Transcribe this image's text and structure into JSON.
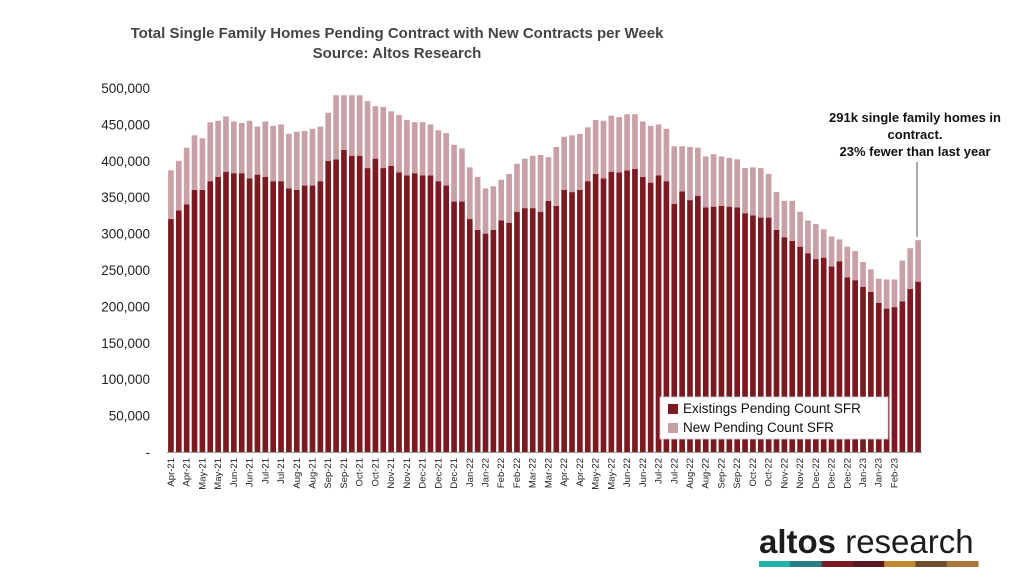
{
  "chart_data": {
    "type": "bar",
    "stacked": true,
    "title": "Total Single Family Homes Pending Contract with New Contracts per Week",
    "subtitle": "Source: Altos Research",
    "ylim": [
      0,
      500000
    ],
    "yticks": [
      {
        "value": 0,
        "label": "-"
      },
      {
        "value": 50000,
        "label": "50,000"
      },
      {
        "value": 100000,
        "label": "100,000"
      },
      {
        "value": 150000,
        "label": "150,000"
      },
      {
        "value": 200000,
        "label": "200,000"
      },
      {
        "value": 250000,
        "label": "250,000"
      },
      {
        "value": 300000,
        "label": "300,000"
      },
      {
        "value": 350000,
        "label": "350,000"
      },
      {
        "value": 400000,
        "label": "400,000"
      },
      {
        "value": 450000,
        "label": "450,000"
      },
      {
        "value": 500000,
        "label": "500,000"
      }
    ],
    "x_tick_every": 2,
    "x_labels": [
      "Apr-21",
      "Apr-21",
      "May-21",
      "May-21",
      "Jun-21",
      "Jun-21",
      "Jul-21",
      "Jul-21",
      "Aug-21",
      "Aug-21",
      "Sep-21",
      "Sep-21",
      "Oct-21",
      "Oct-21",
      "Nov-21",
      "Nov-21",
      "Dec-21",
      "Dec-21",
      "Dec-21",
      "Jan-22",
      "Jan-22",
      "Feb-22",
      "Feb-22",
      "Mar-22",
      "Mar-22",
      "Apr-22",
      "Apr-22",
      "May-22",
      "May-22",
      "Jun-22",
      "Jun-22",
      "Jul-22",
      "Jul-22",
      "Aug-22",
      "Aug-22",
      "Sep-22",
      "Sep-22",
      "Oct-22",
      "Oct-22",
      "Nov-22",
      "Nov-22",
      "Dec-22",
      "Dec-22",
      "Dec-22",
      "Jan-23",
      "Jan-23",
      "Feb-23"
    ],
    "series": [
      {
        "name": "Existings Pending Count SFR",
        "color": "#7b1a22",
        "values": [
          320000,
          332000,
          340000,
          360000,
          360000,
          372000,
          378000,
          385000,
          383000,
          383000,
          376000,
          381000,
          378000,
          372000,
          372000,
          362000,
          360000,
          366000,
          366000,
          372000,
          400000,
          402000,
          415000,
          407000,
          407000,
          390000,
          403000,
          390000,
          393000,
          384000,
          380000,
          383000,
          380000,
          380000,
          372000,
          366000,
          344000,
          344000,
          320000,
          305000,
          300000,
          305000,
          318000,
          315000,
          330000,
          335000,
          335000,
          330000,
          345000,
          338000,
          360000,
          357000,
          360000,
          372000,
          382000,
          376000,
          385000,
          384000,
          387000,
          389000,
          378000,
          370000,
          380000,
          372000,
          341000,
          358000,
          346000,
          352000,
          336000,
          337000,
          338000,
          337000,
          336000,
          328000,
          325000,
          322000,
          322000,
          305000,
          295000,
          290000,
          282000,
          273000,
          265000,
          267000,
          255000,
          262000,
          240000,
          236000,
          227000,
          220000,
          205000,
          197000,
          199000,
          207000,
          224000,
          234000
        ]
      },
      {
        "name": "New Pending Count SFR",
        "color": "#c9a0a5",
        "values": [
          67000,
          68000,
          78000,
          75000,
          71000,
          81000,
          77000,
          76000,
          71000,
          69000,
          79000,
          66000,
          76000,
          76000,
          78000,
          75000,
          80000,
          75000,
          78000,
          75000,
          66000,
          88000,
          75000,
          83000,
          83000,
          92000,
          72000,
          84000,
          75000,
          79000,
          76000,
          70000,
          73000,
          70000,
          70000,
          72000,
          78000,
          73000,
          71000,
          73000,
          62000,
          60000,
          56000,
          67000,
          66000,
          68000,
          72000,
          78000,
          60000,
          81000,
          73000,
          78000,
          77000,
          74000,
          74000,
          79000,
          77000,
          76000,
          77000,
          75000,
          76000,
          78000,
          70000,
          72000,
          79000,
          62000,
          73000,
          66000,
          70000,
          72000,
          68000,
          67000,
          66000,
          62000,
          66000,
          68000,
          60000,
          52000,
          50000,
          55000,
          48000,
          45000,
          48000,
          39000,
          41000,
          30000,
          42000,
          40000,
          34000,
          31000,
          33000,
          40000,
          38000,
          56000,
          56000,
          57000
        ]
      }
    ],
    "legend_position": "bottom-right",
    "grid": false
  },
  "annotation": {
    "lines": [
      "291k single family homes in",
      "contract.",
      "23% fewer than last year"
    ]
  },
  "logo": {
    "text_bold": "altos",
    "text_light": " research",
    "stripe_colors": [
      "#1fb5ac",
      "#2a7f86",
      "#7a1a22",
      "#5b1720",
      "#c0872f",
      "#6d4c2b",
      "#a6783d"
    ]
  }
}
